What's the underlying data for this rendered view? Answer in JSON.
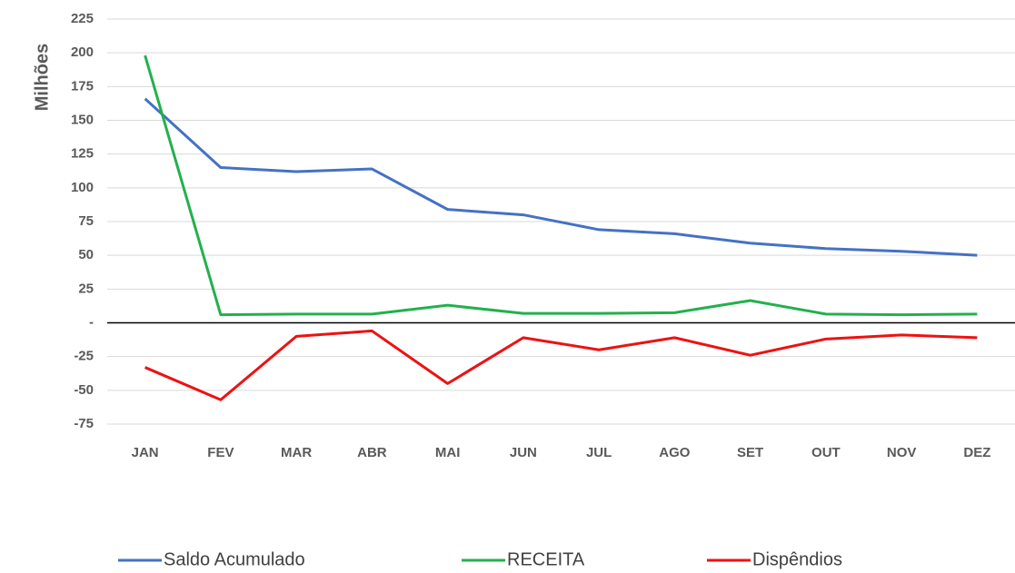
{
  "chart_data": {
    "type": "line",
    "y_label": "Milhões",
    "categories": [
      "JAN",
      "FEV",
      "MAR",
      "ABR",
      "MAI",
      "JUN",
      "JUL",
      "AGO",
      "SET",
      "OUT",
      "NOV",
      "DEZ"
    ],
    "series": [
      {
        "name": "Saldo Acumulado",
        "color": "#4472c4",
        "values": [
          166,
          115,
          112,
          114,
          84,
          80,
          69,
          66,
          59,
          55,
          53,
          50
        ]
      },
      {
        "name": "RECEITA",
        "color": "#22b14c",
        "values": [
          198,
          6,
          6.5,
          6.5,
          13,
          7,
          7,
          7.5,
          16.5,
          6.5,
          6,
          6.5
        ]
      },
      {
        "name": "Dispêndios",
        "color": "#ee1111",
        "values": [
          -33,
          -57,
          -10,
          -6,
          -45,
          -11,
          -20,
          -11,
          -24,
          -12,
          -9,
          -11
        ]
      }
    ],
    "ylim": [
      -75,
      225
    ],
    "yticks": [
      -75,
      -50,
      -25,
      {
        "value": 0,
        "label": "-"
      },
      25,
      50,
      75,
      100,
      125,
      150,
      175,
      200,
      225
    ],
    "grid": true,
    "legend": "bottom"
  }
}
